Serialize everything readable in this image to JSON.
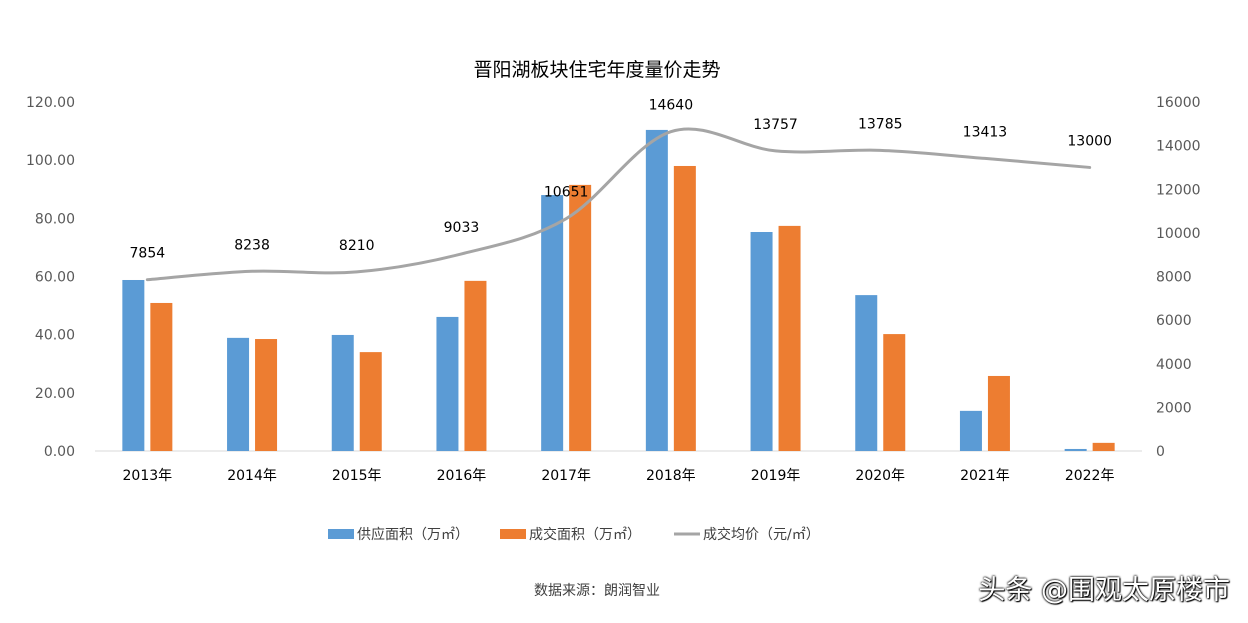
{
  "chart_data": {
    "type": "bar+line",
    "title": "晋阳湖板块住宅年度量价走势",
    "categories": [
      "2013年",
      "2014年",
      "2015年",
      "2016年",
      "2017年",
      "2018年",
      "2019年",
      "2020年",
      "2021年",
      "2022年"
    ],
    "series": [
      {
        "name": "供应面积（万㎡）",
        "type": "bar",
        "axis": "left",
        "color": "#5B9BD5",
        "values": [
          58.8,
          38.9,
          39.9,
          46.1,
          88.0,
          110.4,
          75.3,
          53.6,
          13.8,
          0.7
        ]
      },
      {
        "name": "成交面积（万㎡）",
        "type": "bar",
        "axis": "left",
        "color": "#ED7D31",
        "values": [
          50.9,
          38.5,
          34.0,
          58.5,
          91.5,
          98.0,
          77.4,
          40.2,
          25.8,
          2.8
        ]
      },
      {
        "name": "成交均价（元/㎡）",
        "type": "line",
        "axis": "right",
        "color": "#A5A5A5",
        "smooth": true,
        "values": [
          7854,
          8238,
          8210,
          9033,
          10651,
          14640,
          13757,
          13785,
          13413,
          13000
        ],
        "data_labels": [
          "7854",
          "8238",
          "8210",
          "9033",
          "10651",
          "14640",
          "13757",
          "13785",
          "13413",
          "13000"
        ]
      }
    ],
    "left_axis": {
      "range": [
        0,
        120
      ],
      "ticks": [
        "0.00",
        "20.00",
        "40.00",
        "60.00",
        "80.00",
        "100.00",
        "120.00"
      ]
    },
    "right_axis": {
      "range": [
        0,
        16000
      ],
      "ticks": [
        "0",
        "2000",
        "4000",
        "6000",
        "8000",
        "10000",
        "12000",
        "14000",
        "16000"
      ]
    },
    "grid": false,
    "legend": "bottom",
    "source_note": "数据来源：朗润智业"
  },
  "watermark": "头条 @围观太原楼市"
}
